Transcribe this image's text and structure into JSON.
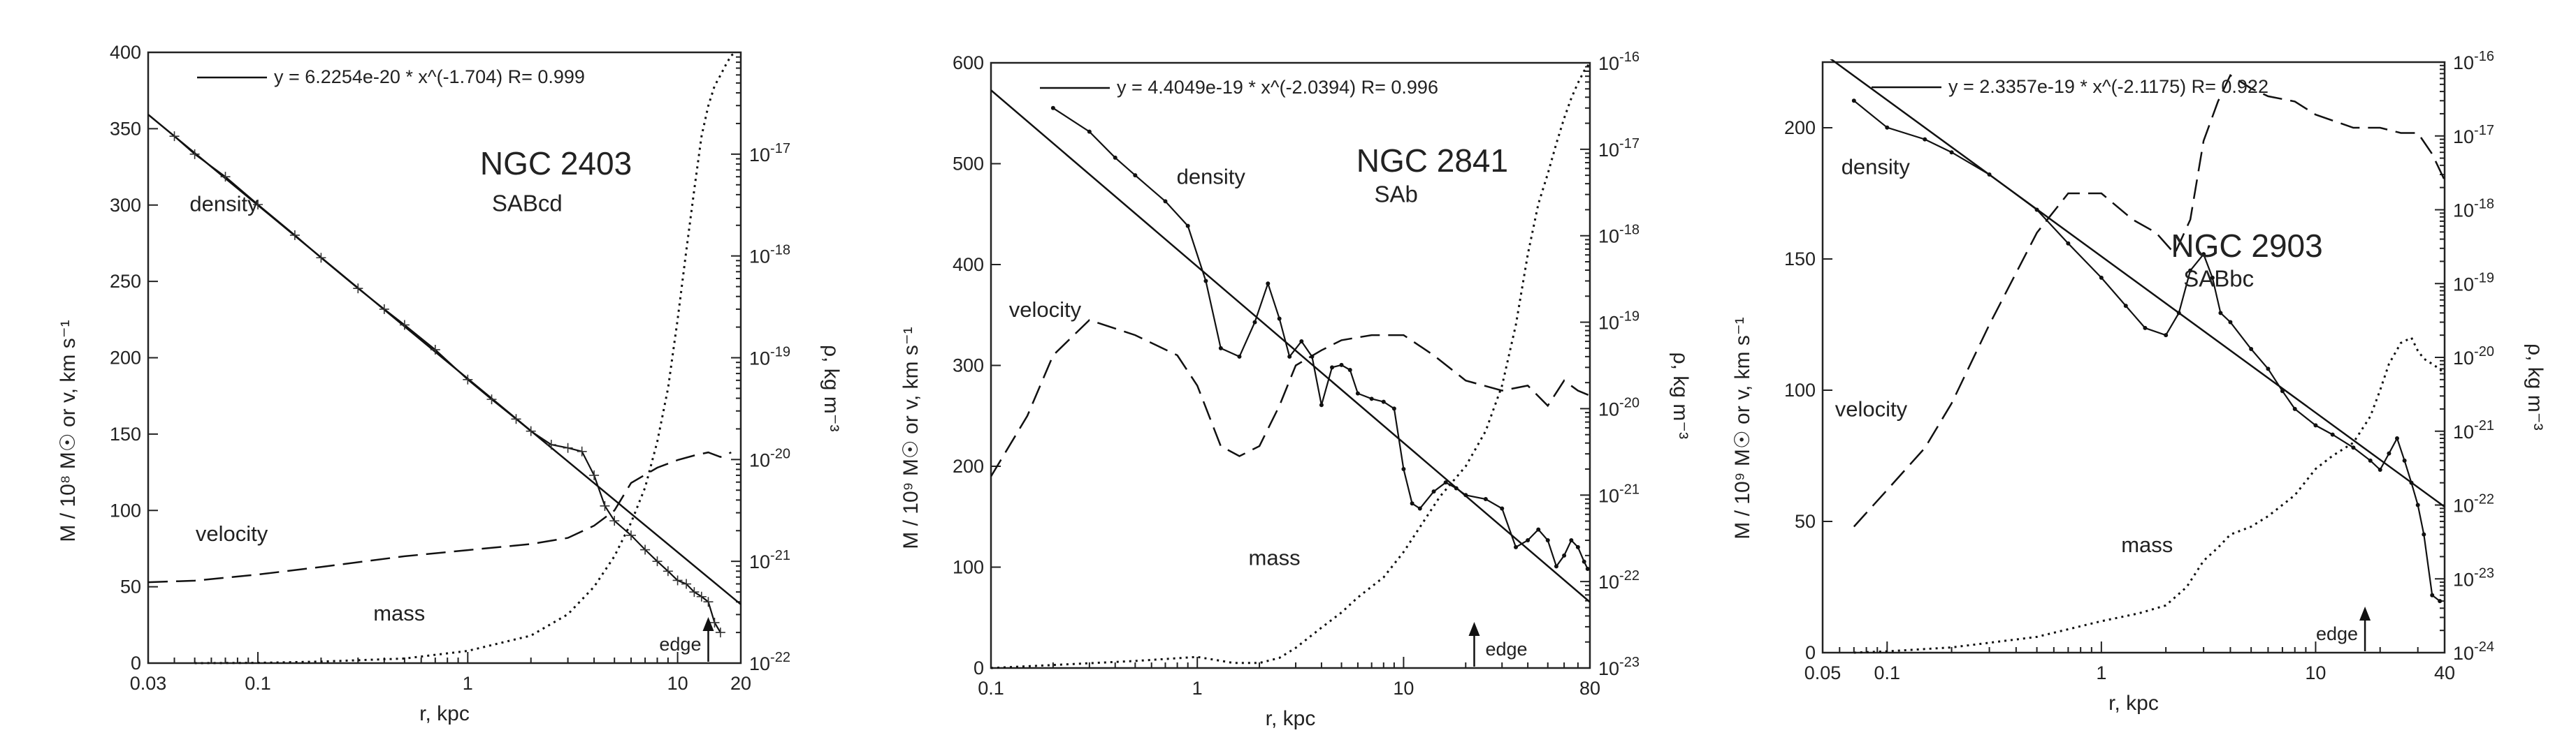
{
  "figure": {
    "panels": [
      {
        "name": "NGC 2403",
        "type": "SABcd",
        "left_axis_label": "M / 10⁸ M☉   or   v, km s⁻¹",
        "right_axis_label": "ρ, kg m⁻³",
        "x_axis_label": "r, kpc",
        "fit_label": "y = 6.2254e-20 * x^(-1.704)   R= 0.999",
        "curve_labels": {
          "density": "density",
          "velocity": "velocity",
          "mass": "mass",
          "edge": "edge"
        }
      },
      {
        "name": "NGC 2841",
        "type": "SAb",
        "left_axis_label": "M / 10⁹ M☉   or   v, km s⁻¹",
        "right_axis_label": "ρ, kg m⁻³",
        "x_axis_label": "r, kpc",
        "fit_label": "y = 4.4049e-19 * x^(-2.0394)   R= 0.996",
        "curve_labels": {
          "density": "density",
          "velocity": "velocity",
          "mass": "mass",
          "edge": "edge"
        }
      },
      {
        "name": "NGC 2903",
        "type": "SABbc",
        "left_axis_label": "M / 10⁹ M☉   or   v, km s⁻¹",
        "right_axis_label": "ρ, kg m⁻³",
        "x_axis_label": "r, kpc",
        "fit_label": "y = 2.3357e-19 * x^(-2.1175)   R= 0.922",
        "curve_labels": {
          "density": "density",
          "velocity": "velocity",
          "mass": "mass",
          "edge": "edge"
        }
      }
    ]
  },
  "chart_data": [
    {
      "type": "line",
      "title": "NGC 2403",
      "subtitle": "SABcd",
      "xlabel": "r, kpc",
      "ylabel": "M / 10^8 M_sun or v, km s^-1",
      "y2label": "ρ, kg m^-3",
      "xscale": "log",
      "xlim": [
        0.03,
        20
      ],
      "xticks": [
        0.03,
        0.1,
        1,
        10,
        20
      ],
      "ylim": [
        0,
        400
      ],
      "yticks": [
        0,
        50,
        100,
        150,
        200,
        250,
        300,
        350,
        400
      ],
      "y2scale": "log",
      "y2lim": [
        1e-22,
        1e-16
      ],
      "y2ticks": [
        {
          "v": 1e-22,
          "m": "10",
          "e": "-22"
        },
        {
          "v": 1e-21,
          "m": "10",
          "e": "-21"
        },
        {
          "v": 1e-20,
          "m": "10",
          "e": "-20"
        },
        {
          "v": 1e-19,
          "m": "10",
          "e": "-19"
        },
        {
          "v": 1e-18,
          "m": "10",
          "e": "-18"
        },
        {
          "v": 1e-17,
          "m": "10",
          "e": "-17"
        }
      ],
      "fit": {
        "a": 6.2254e-20,
        "b": -1.704,
        "R": 0.999
      },
      "edge_r": 14,
      "series": [
        {
          "name": "velocity",
          "axis": "left",
          "style": "dashed",
          "x": [
            0.03,
            0.05,
            0.1,
            0.2,
            0.5,
            1,
            2,
            3,
            4,
            5,
            6,
            8,
            10,
            12,
            14,
            16,
            18
          ],
          "y": [
            53,
            54,
            58,
            63,
            70,
            74,
            78,
            82,
            90,
            100,
            118,
            128,
            133,
            136,
            138,
            135,
            138
          ]
        },
        {
          "name": "mass",
          "axis": "left",
          "style": "dotted",
          "x": [
            0.05,
            0.1,
            0.2,
            0.5,
            1,
            2,
            3,
            4,
            5,
            6,
            7,
            8,
            9,
            10,
            11,
            12,
            13,
            14,
            15,
            16,
            17,
            18,
            19
          ],
          "y": [
            0,
            0.2,
            1,
            3,
            8,
            18,
            32,
            50,
            70,
            92,
            115,
            145,
            180,
            225,
            270,
            310,
            345,
            365,
            378,
            385,
            392,
            398,
            400
          ]
        },
        {
          "name": "density",
          "axis": "right",
          "style": "plus-markers",
          "x": [
            0.04,
            0.05,
            0.07,
            0.1,
            0.15,
            0.2,
            0.3,
            0.4,
            0.5,
            0.7,
            1,
            1.3,
            1.7,
            2,
            2.5,
            3,
            3.5,
            4,
            4.5,
            5,
            6,
            7,
            8,
            9,
            10,
            11,
            12,
            13,
            14,
            15,
            16
          ],
          "y": [
            1.5e-17,
            1e-17,
            6e-18,
            3.2e-18,
            1.6e-18,
            9.6e-19,
            4.8e-19,
            3e-19,
            2.1e-19,
            1.2e-19,
            6.1e-20,
            3.9e-20,
            2.5e-20,
            1.9e-20,
            1.4e-20,
            1.3e-20,
            1.2e-20,
            7e-21,
            3.5e-21,
            2.5e-21,
            1.8e-21,
            1.3e-21,
            1e-21,
            8e-22,
            6.5e-22,
            6e-22,
            5e-22,
            4.5e-22,
            4e-22,
            2.5e-22,
            2e-22
          ]
        }
      ]
    },
    {
      "type": "line",
      "title": "NGC 2841",
      "subtitle": "SAb",
      "xlabel": "r, kpc",
      "ylabel": "M / 10^9 M_sun or v, km s^-1",
      "y2label": "ρ, kg m^-3",
      "xscale": "log",
      "xlim": [
        0.1,
        80
      ],
      "xticks": [
        0.1,
        1,
        10,
        80
      ],
      "ylim": [
        0,
        600
      ],
      "yticks": [
        0,
        100,
        200,
        300,
        400,
        500,
        600
      ],
      "y2scale": "log",
      "y2lim": [
        1e-23,
        1e-16
      ],
      "y2ticks": [
        {
          "v": 1e-23,
          "m": "10",
          "e": "-23"
        },
        {
          "v": 1e-22,
          "m": "10",
          "e": "-22"
        },
        {
          "v": 1e-21,
          "m": "10",
          "e": "-21"
        },
        {
          "v": 1e-20,
          "m": "10",
          "e": "-20"
        },
        {
          "v": 1e-19,
          "m": "10",
          "e": "-19"
        },
        {
          "v": 1e-18,
          "m": "10",
          "e": "-18"
        },
        {
          "v": 1e-17,
          "m": "10",
          "e": "-17"
        },
        {
          "v": 1e-16,
          "m": "10",
          "e": "-16"
        }
      ],
      "fit": {
        "a": 4.4049e-19,
        "b": -2.0394,
        "R": 0.996
      },
      "edge_r": 22,
      "series": [
        {
          "name": "velocity",
          "axis": "left",
          "style": "dashed",
          "x": [
            0.1,
            0.15,
            0.2,
            0.3,
            0.5,
            0.8,
            1,
            1.3,
            1.6,
            2,
            2.5,
            3,
            4,
            5,
            7,
            10,
            14,
            20,
            30,
            40,
            50,
            60,
            70,
            80
          ],
          "y": [
            190,
            250,
            310,
            345,
            330,
            310,
            280,
            220,
            210,
            220,
            260,
            300,
            315,
            325,
            330,
            330,
            310,
            285,
            275,
            280,
            260,
            285,
            275,
            270
          ]
        },
        {
          "name": "mass",
          "axis": "left",
          "style": "dotted",
          "x": [
            0.1,
            0.2,
            0.5,
            1,
            1.5,
            2,
            2.5,
            3,
            4,
            5,
            6,
            8,
            10,
            15,
            20,
            25,
            30,
            35,
            40,
            45,
            50,
            55,
            60,
            65,
            70,
            75,
            80
          ],
          "y": [
            0,
            3,
            7,
            11,
            5,
            5,
            10,
            20,
            40,
            55,
            70,
            90,
            115,
            170,
            200,
            235,
            280,
            340,
            410,
            460,
            490,
            520,
            545,
            565,
            580,
            592,
            600
          ]
        },
        {
          "name": "density",
          "axis": "right",
          "style": "dots",
          "x": [
            0.2,
            0.3,
            0.4,
            0.5,
            0.7,
            0.9,
            1.1,
            1.3,
            1.6,
            1.9,
            2.2,
            2.5,
            2.8,
            3.2,
            3.6,
            4,
            4.5,
            5,
            5.5,
            6,
            7,
            8,
            9,
            10,
            11,
            12,
            14,
            16,
            18,
            20,
            25,
            30,
            35,
            40,
            45,
            50,
            55,
            60,
            65,
            70,
            75,
            78
          ],
          "y": [
            3e-17,
            1.6e-17,
            8e-18,
            5e-18,
            2.5e-18,
            1.3e-18,
            3e-19,
            5e-20,
            4e-20,
            1e-19,
            2.8e-19,
            1.1e-19,
            4e-20,
            6e-20,
            4e-20,
            1.1e-20,
            3e-20,
            3.2e-20,
            2.8e-20,
            1.5e-20,
            1.3e-20,
            1.2e-20,
            1e-20,
            2e-21,
            8e-22,
            7e-22,
            1.1e-21,
            1.4e-21,
            1.2e-21,
            1e-21,
            9e-22,
            7e-22,
            2.5e-22,
            3e-22,
            4e-22,
            3e-22,
            1.5e-22,
            2e-22,
            3e-22,
            2.5e-22,
            1.7e-22,
            1.4e-22
          ]
        }
      ]
    },
    {
      "type": "line",
      "title": "NGC 2903",
      "subtitle": "SABbc",
      "xlabel": "r, kpc",
      "ylabel": "M / 10^9 M_sun or v, km s^-1",
      "y2label": "ρ, kg m^-3",
      "xscale": "log",
      "xlim": [
        0.05,
        40
      ],
      "xticks": [
        0.05,
        0.1,
        1,
        10,
        40
      ],
      "ylim": [
        0,
        225
      ],
      "yticks": [
        0,
        50,
        100,
        150,
        200
      ],
      "y2scale": "log",
      "y2lim": [
        1e-24,
        1e-16
      ],
      "y2ticks": [
        {
          "v": 1e-24,
          "m": "10",
          "e": "-24"
        },
        {
          "v": 1e-23,
          "m": "10",
          "e": "-23"
        },
        {
          "v": 1e-22,
          "m": "10",
          "e": "-22"
        },
        {
          "v": 1e-21,
          "m": "10",
          "e": "-21"
        },
        {
          "v": 1e-20,
          "m": "10",
          "e": "-20"
        },
        {
          "v": 1e-19,
          "m": "10",
          "e": "-19"
        },
        {
          "v": 1e-18,
          "m": "10",
          "e": "-18"
        },
        {
          "v": 1e-17,
          "m": "10",
          "e": "-17"
        },
        {
          "v": 1e-16,
          "m": "10",
          "e": "-16"
        }
      ],
      "fit": {
        "a": 2.3357e-19,
        "b": -2.1175,
        "R": 0.922
      },
      "edge_r": 17,
      "series": [
        {
          "name": "velocity",
          "axis": "left",
          "style": "dashed",
          "x": [
            0.07,
            0.1,
            0.15,
            0.2,
            0.3,
            0.5,
            0.7,
            1,
            1.4,
            1.8,
            2.2,
            2.6,
            3,
            3.5,
            4,
            5,
            6,
            8,
            10,
            15,
            20,
            25,
            30,
            35,
            40
          ],
          "y": [
            48,
            62,
            78,
            95,
            125,
            160,
            175,
            175,
            165,
            160,
            152,
            165,
            195,
            210,
            220,
            215,
            212,
            210,
            205,
            200,
            200,
            198,
            198,
            190,
            180
          ]
        },
        {
          "name": "mass",
          "axis": "left",
          "style": "dotted",
          "x": [
            0.07,
            0.1,
            0.2,
            0.5,
            1,
            1.5,
            2,
            2.5,
            3,
            3.5,
            4,
            5,
            6,
            8,
            10,
            12,
            15,
            18,
            20,
            22,
            25,
            28,
            30,
            32,
            35,
            38,
            40
          ],
          "y": [
            0,
            0.5,
            2,
            6,
            12,
            15,
            18,
            25,
            35,
            40,
            45,
            48,
            52,
            60,
            70,
            75,
            80,
            90,
            100,
            110,
            118,
            120,
            115,
            112,
            110,
            108,
            106
          ]
        },
        {
          "name": "density",
          "axis": "right",
          "style": "dots",
          "x": [
            0.07,
            0.1,
            0.15,
            0.2,
            0.3,
            0.5,
            0.7,
            1,
            1.3,
            1.6,
            2,
            2.3,
            2.6,
            3,
            3.3,
            3.6,
            4,
            5,
            6,
            7,
            8,
            10,
            12,
            15,
            18,
            20,
            22,
            24,
            26,
            28,
            30,
            32,
            35,
            38
          ],
          "y": [
            3e-17,
            1.3e-17,
            9e-18,
            6e-18,
            3e-18,
            1e-18,
            3.5e-19,
            1.2e-19,
            5e-20,
            2.5e-20,
            2e-20,
            4e-20,
            1.5e-19,
            2.5e-19,
            1.2e-19,
            4e-20,
            3e-20,
            1.3e-20,
            7e-21,
            3.5e-21,
            2e-21,
            1.2e-21,
            9e-22,
            6e-22,
            4e-22,
            3e-22,
            5e-22,
            8e-22,
            4e-22,
            2e-22,
            1e-22,
            4e-23,
            6e-24,
            5e-24
          ]
        }
      ]
    }
  ]
}
